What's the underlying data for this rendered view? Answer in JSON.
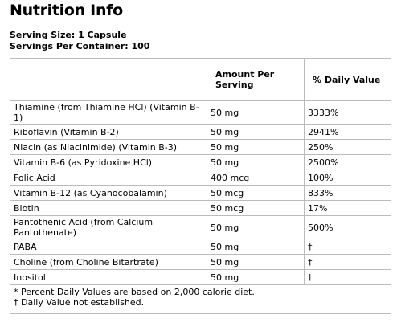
{
  "header": {
    "title": "Nutrition Info"
  },
  "serving": {
    "size": "Serving Size: 1 Capsule",
    "per_container": "Servings Per Container: 100"
  },
  "table": {
    "columns": [
      "Amount Per Serving",
      "% Daily Value"
    ],
    "rows": [
      [
        "Thiamine (from Thiamine HCl) (Vitamin B-1)",
        "50 mg",
        "3333%"
      ],
      [
        "Riboflavin (Vitamin B-2)",
        "50 mg",
        "2941%"
      ],
      [
        "Niacin (as Niacinimide) (Vitamin B-3)",
        "50 mg",
        "250%"
      ],
      [
        "Vitamin B-6 (as Pyridoxine HCl)",
        "50 mg",
        "2500%"
      ],
      [
        "Folic Acid",
        "400 mcg",
        "100%"
      ],
      [
        "Vitamin B-12 (as Cyanocobalamin)",
        "50 mcg",
        "833%"
      ],
      [
        "Biotin",
        "50 mcg",
        "17%"
      ],
      [
        "Pantothenic Acid (from Calcium Pantothenate)",
        "50 mg",
        "500%"
      ],
      [
        "PABA",
        "50 mg",
        "†"
      ],
      [
        "Choline (from Choline Bitartrate)",
        "50 mg",
        "†"
      ],
      [
        "Inositol",
        "50 mg",
        "†"
      ]
    ],
    "footnotes": [
      "* Percent Daily Values are based on 2,000 calorie diet.",
      "† Daily Value not established."
    ]
  }
}
